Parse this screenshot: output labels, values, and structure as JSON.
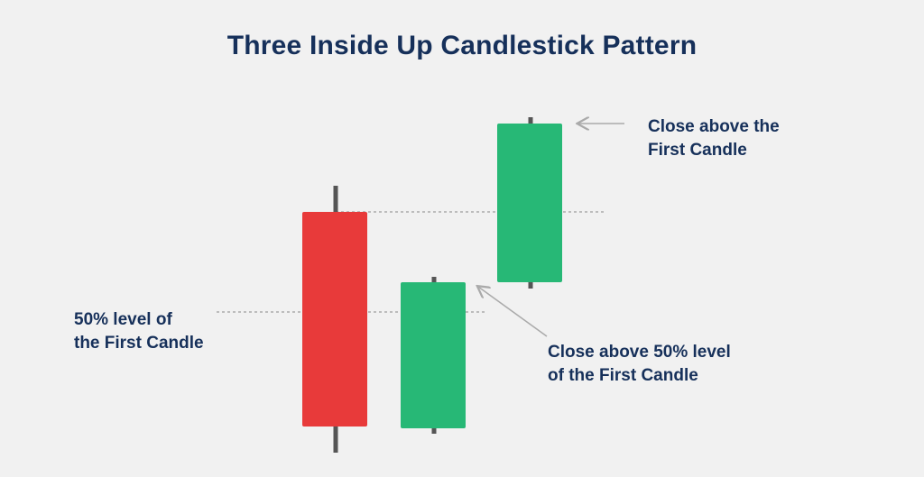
{
  "title": "Three Inside Up Candlestick Pattern",
  "colors": {
    "bearish": "#e83a3a",
    "bullish": "#27b876",
    "wick": "#555555",
    "text": "#16305a",
    "guide": "#aaaaaa"
  },
  "candles": [
    {
      "name": "first-candle",
      "direction": "bearish"
    },
    {
      "name": "second-candle",
      "direction": "bullish"
    },
    {
      "name": "third-candle",
      "direction": "bullish"
    }
  ],
  "annotations": {
    "fifty_percent": {
      "line1": "50% level of",
      "line2": "the First Candle"
    },
    "close_above_fifty": {
      "line1": "Close above 50% level",
      "line2": "of the First Candle"
    },
    "close_above_first": {
      "line1": "Close above the",
      "line2": "First Candle"
    }
  }
}
